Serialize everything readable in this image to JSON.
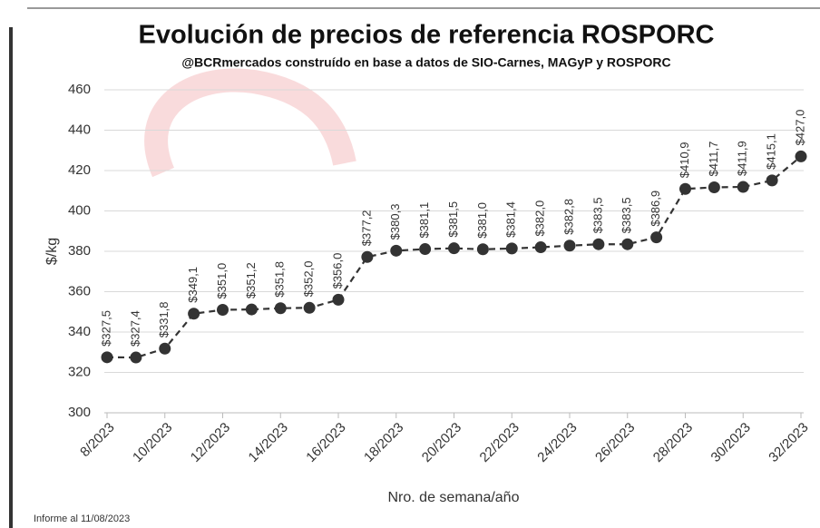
{
  "chart_data": {
    "type": "line",
    "title": "Evolución de precios de referencia ROSPORC",
    "subtitle": "@BCRmercados construído en base a datos de SIO-Carnes, MAGyP y ROSPORC",
    "x_label": "Nro. de semana/año",
    "y_label": "$/kg",
    "footnote": "Informe al 11/08/2023",
    "categories": [
      "8/2023",
      null,
      "10/2023",
      null,
      "12/2023",
      null,
      "14/2023",
      null,
      "16/2023",
      null,
      "18/2023",
      null,
      "20/2023",
      null,
      "22/2023",
      null,
      "24/2023",
      null,
      "26/2023",
      null,
      "28/2023",
      null,
      "30/2023",
      null,
      "32/2023"
    ],
    "values": [
      327.5,
      327.4,
      331.8,
      349.1,
      351.0,
      351.2,
      351.8,
      352.0,
      356.0,
      377.2,
      380.3,
      381.1,
      381.5,
      381.0,
      381.4,
      382.0,
      382.8,
      383.5,
      383.5,
      386.9,
      410.9,
      411.7,
      411.9,
      415.1,
      427.0
    ],
    "value_labels": [
      "$327,5",
      "$327,4",
      "$331,8",
      "$349,1",
      "$351,0",
      "$351,2",
      "$351,8",
      "$352,0",
      "$356,0",
      "$377,2",
      "$380,3",
      "$381,1",
      "$381,5",
      "$381,0",
      "$381,4",
      "$382,0",
      "$382,8",
      "$383,5",
      "$383,5",
      "$386,9",
      "$410,9",
      "$411,7",
      "$411,9",
      "$415,1",
      "$427,0"
    ],
    "color": "#333333",
    "ylim": [
      300,
      460
    ],
    "yticks": [
      300,
      320,
      340,
      360,
      380,
      400,
      420,
      440,
      460
    ],
    "grid": true
  }
}
